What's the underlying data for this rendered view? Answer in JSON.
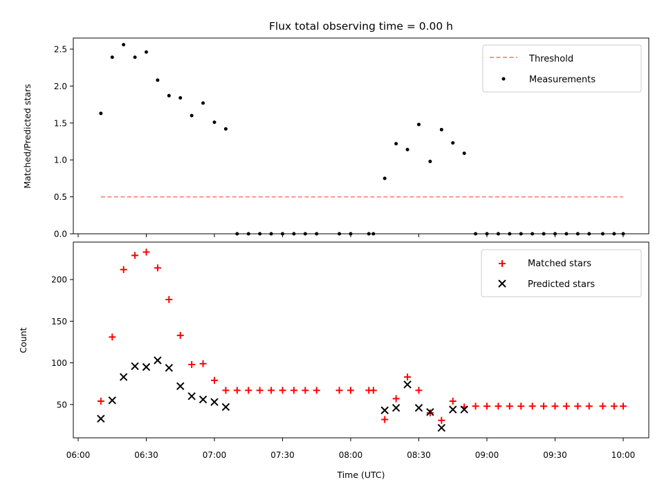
{
  "chart_data": [
    {
      "type": "scatter",
      "title": "Flux total observing time = 0.00 h",
      "xlabel": "",
      "ylabel": "Matched/Predicted stars",
      "ylim": [
        0,
        2.65
      ],
      "yticks": [
        "0.0",
        "0.5",
        "1.0",
        "1.5",
        "2.0",
        "2.5"
      ],
      "legend_position": "top-right",
      "threshold": {
        "name": "Threshold",
        "color": "#ff8080",
        "style": "dashed",
        "y": 0.5,
        "x_start": "06:10",
        "x_end": "10:00"
      },
      "series": [
        {
          "name": "Measurements",
          "color": "#000000",
          "marker": "dot",
          "x": [
            "06:10",
            "06:15",
            "06:20",
            "06:25",
            "06:30",
            "06:35",
            "06:40",
            "06:45",
            "06:50",
            "06:55",
            "07:00",
            "07:05",
            "07:10",
            "07:15",
            "07:20",
            "07:25",
            "07:30",
            "07:35",
            "07:40",
            "07:45",
            "07:55",
            "08:00",
            "08:08",
            "08:10",
            "08:15",
            "08:20",
            "08:25",
            "08:30",
            "08:35",
            "08:40",
            "08:45",
            "08:50",
            "08:55",
            "09:00",
            "09:05",
            "09:10",
            "09:15",
            "09:20",
            "09:25",
            "09:30",
            "09:35",
            "09:40",
            "09:45",
            "09:51",
            "09:56",
            "10:00"
          ],
          "y": [
            1.63,
            2.39,
            2.56,
            2.39,
            2.46,
            2.08,
            1.87,
            1.84,
            1.6,
            1.77,
            1.51,
            1.42,
            0,
            0,
            0,
            0,
            0,
            0,
            0,
            0,
            0,
            0,
            0,
            0,
            0.75,
            1.22,
            1.14,
            1.48,
            0.98,
            1.41,
            1.23,
            1.09,
            0,
            0,
            0,
            0,
            0,
            0,
            0,
            0,
            0,
            0,
            0,
            0,
            0,
            0
          ]
        }
      ]
    },
    {
      "type": "scatter",
      "title": "",
      "xlabel": "Time (UTC)",
      "ylabel": "Count",
      "ylim": [
        10,
        245
      ],
      "yticks": [
        "50",
        "100",
        "150",
        "200"
      ],
      "xticks": [
        "06:00",
        "06:30",
        "07:00",
        "07:30",
        "08:00",
        "08:30",
        "09:00",
        "09:30",
        "10:00"
      ],
      "legend_position": "top-right",
      "series": [
        {
          "name": "Matched stars",
          "color": "#ff0000",
          "marker": "plus",
          "x": [
            "06:10",
            "06:15",
            "06:20",
            "06:25",
            "06:30",
            "06:35",
            "06:40",
            "06:45",
            "06:50",
            "06:55",
            "07:00",
            "07:05",
            "07:10",
            "07:15",
            "07:20",
            "07:25",
            "07:30",
            "07:35",
            "07:40",
            "07:45",
            "07:55",
            "08:00",
            "08:08",
            "08:10",
            "08:15",
            "08:20",
            "08:25",
            "08:30",
            "08:35",
            "08:40",
            "08:45",
            "08:50",
            "08:55",
            "09:00",
            "09:05",
            "09:10",
            "09:15",
            "09:20",
            "09:25",
            "09:30",
            "09:35",
            "09:40",
            "09:45",
            "09:51",
            "09:56",
            "10:00"
          ],
          "y": [
            54,
            131,
            212,
            229,
            233,
            214,
            176,
            133,
            98,
            99,
            79,
            67,
            67,
            67,
            67,
            67,
            67,
            67,
            67,
            67,
            67,
            67,
            67,
            67,
            32,
            57,
            83,
            67,
            40,
            31,
            54,
            47,
            48,
            48,
            48,
            48,
            48,
            48,
            48,
            48,
            48,
            48,
            48,
            48,
            48,
            48
          ]
        },
        {
          "name": "Predicted stars",
          "color": "#000000",
          "marker": "x",
          "x": [
            "06:10",
            "06:15",
            "06:20",
            "06:25",
            "06:30",
            "06:35",
            "06:40",
            "06:45",
            "06:50",
            "06:55",
            "07:00",
            "07:05",
            "08:15",
            "08:20",
            "08:25",
            "08:30",
            "08:35",
            "08:40",
            "08:45",
            "08:50"
          ],
          "y": [
            33,
            55,
            83,
            96,
            95,
            103,
            94,
            72,
            60,
            56,
            53,
            47,
            43,
            46,
            74,
            46,
            41,
            22,
            44,
            44
          ]
        }
      ]
    }
  ]
}
